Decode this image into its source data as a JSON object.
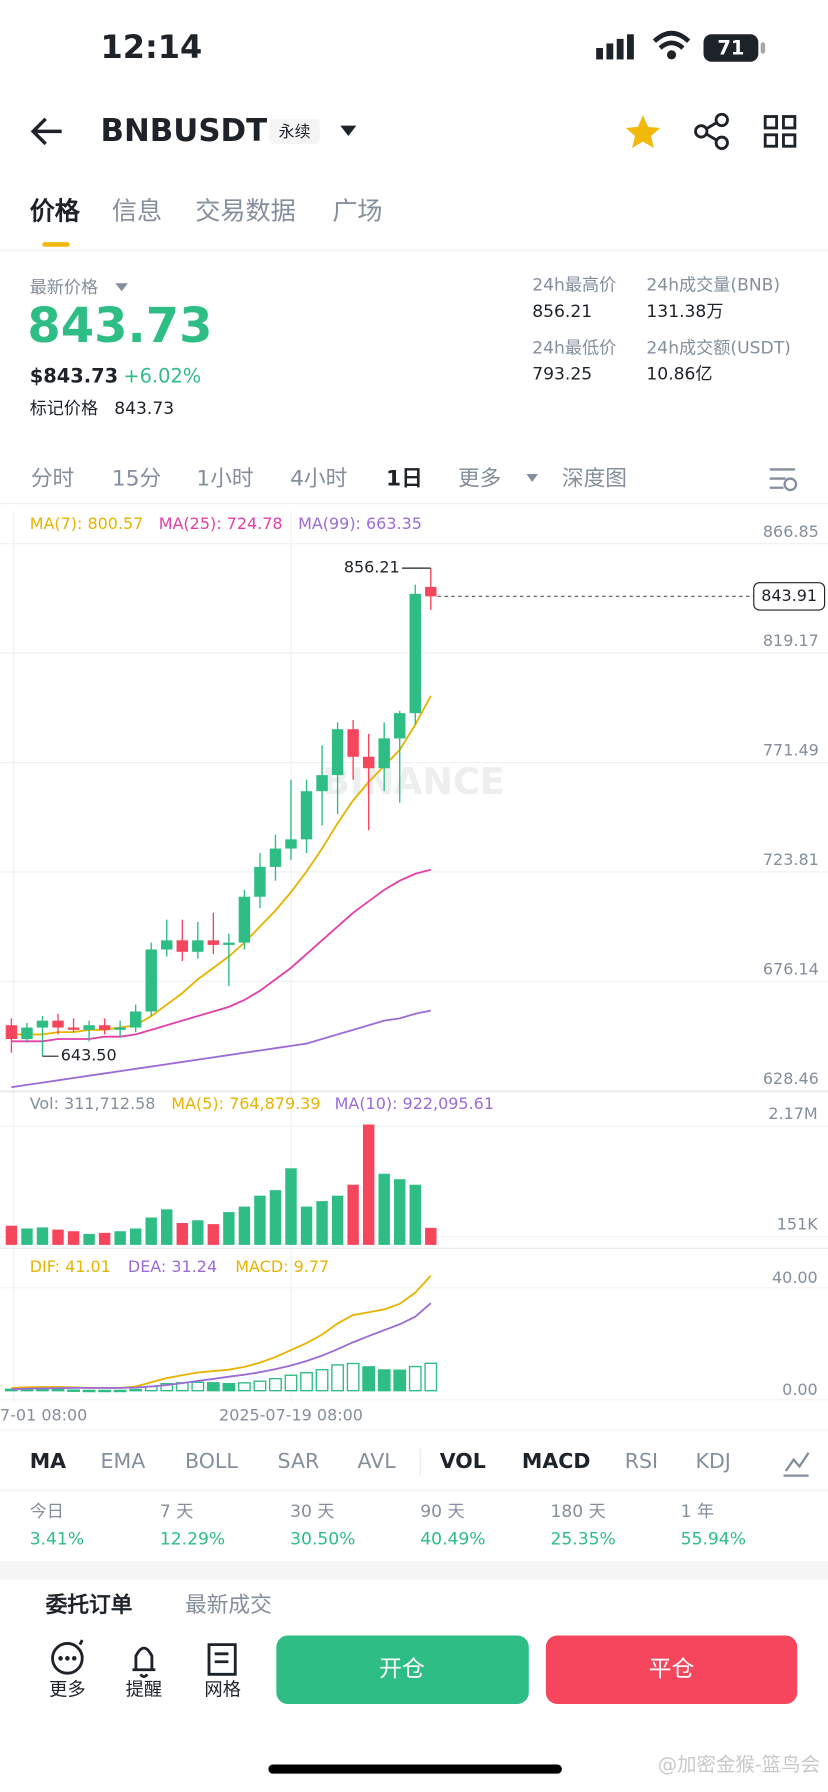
{
  "status_bar": {
    "time": "12:14",
    "battery": "71"
  },
  "header": {
    "symbol": "BNBUSDT",
    "tag": "永续"
  },
  "tabs": [
    "价格",
    "信息",
    "交易数据",
    "广场"
  ],
  "price": {
    "label": "最新价格",
    "last": "843.73",
    "usd": "$843.73",
    "change": "+6.02%",
    "mark_label": "标记价格",
    "mark": "843.73"
  },
  "stats": [
    {
      "label": "24h最高价",
      "value": "856.21"
    },
    {
      "label": "24h成交量(BNB)",
      "value": "131.38万"
    },
    {
      "label": "24h最低价",
      "value": "793.25"
    },
    {
      "label": "24h成交额(USDT)",
      "value": "10.86亿"
    }
  ],
  "intervals": [
    "分时",
    "15分",
    "1小时",
    "4小时",
    "1日",
    "更多",
    "深度图"
  ],
  "kline": {
    "up_color": "#2ebd85",
    "down_color": "#f6465d",
    "ylim": [
      628.46,
      880.8
    ],
    "yticks": [
      866.85,
      819.17,
      771.49,
      723.81,
      676.14,
      628.46
    ],
    "categories": [
      "7-01 08:00",
      null,
      null,
      null,
      null,
      null,
      null,
      null,
      null,
      null,
      null,
      null,
      null,
      null,
      null,
      null,
      null,
      null,
      "2025-07-19 08:00",
      null,
      null,
      null,
      null,
      null,
      null,
      null,
      null,
      null
    ],
    "candles": [
      {
        "open": 657,
        "high": 660,
        "low": 645,
        "close": 651
      },
      {
        "open": 651,
        "high": 658,
        "low": 650,
        "close": 656
      },
      {
        "open": 656,
        "high": 661,
        "low": 643.5,
        "close": 659
      },
      {
        "open": 659,
        "high": 662,
        "low": 653,
        "close": 656
      },
      {
        "open": 656,
        "high": 660,
        "low": 654,
        "close": 655
      },
      {
        "open": 655,
        "high": 659,
        "low": 650,
        "close": 657
      },
      {
        "open": 657,
        "high": 660,
        "low": 653,
        "close": 655
      },
      {
        "open": 655,
        "high": 659,
        "low": 652,
        "close": 656
      },
      {
        "open": 656,
        "high": 666,
        "low": 654,
        "close": 663
      },
      {
        "open": 663,
        "high": 693,
        "low": 661,
        "close": 690
      },
      {
        "open": 690,
        "high": 703,
        "low": 687,
        "close": 694
      },
      {
        "open": 694,
        "high": 703,
        "low": 685,
        "close": 689
      },
      {
        "open": 689,
        "high": 702,
        "low": 686,
        "close": 694
      },
      {
        "open": 694,
        "high": 706,
        "low": 688,
        "close": 692
      },
      {
        "open": 692,
        "high": 697,
        "low": 674,
        "close": 693
      },
      {
        "open": 693,
        "high": 716,
        "low": 690,
        "close": 713
      },
      {
        "open": 713,
        "high": 732,
        "low": 708,
        "close": 726
      },
      {
        "open": 726,
        "high": 740,
        "low": 720,
        "close": 734
      },
      {
        "open": 734,
        "high": 764,
        "low": 729,
        "close": 738
      },
      {
        "open": 738,
        "high": 764,
        "low": 732,
        "close": 759
      },
      {
        "open": 759,
        "high": 779,
        "low": 744,
        "close": 766
      },
      {
        "open": 766,
        "high": 789,
        "low": 749,
        "close": 786
      },
      {
        "open": 786,
        "high": 790,
        "low": 764,
        "close": 774
      },
      {
        "open": 774,
        "high": 784,
        "low": 742,
        "close": 769
      },
      {
        "open": 769,
        "high": 789,
        "low": 759,
        "close": 782
      },
      {
        "open": 782,
        "high": 794,
        "low": 754,
        "close": 793
      },
      {
        "open": 793,
        "high": 849,
        "low": 788,
        "close": 845
      },
      {
        "open": 848,
        "high": 856.21,
        "low": 838,
        "close": 843.91
      }
    ],
    "ma": [
      {
        "label": "MA(7): 800.57",
        "color": "#e6b400",
        "values": [
          653,
          653,
          653,
          654,
          654,
          655,
          655,
          656,
          657,
          661,
          666,
          671,
          677,
          682,
          687,
          693,
          700,
          707,
          715,
          724,
          734,
          745,
          755,
          763,
          770,
          777,
          788,
          800.57
        ]
      },
      {
        "label": "MA(25): 724.78",
        "color": "#e040a8",
        "values": [
          650,
          650,
          650,
          651,
          651,
          651,
          652,
          652,
          653,
          655,
          657,
          659,
          661,
          663,
          665,
          668,
          672,
          677,
          682,
          688,
          694,
          700,
          706,
          711,
          716,
          720,
          723,
          724.78
        ]
      },
      {
        "label": "MA(99): 663.35",
        "color": "#9b6bd6",
        "values": [
          630,
          631,
          632,
          633,
          634,
          635,
          636,
          637,
          638,
          639,
          640,
          641,
          642,
          643,
          644,
          645,
          646,
          647,
          648,
          649,
          651,
          653,
          655,
          657,
          659,
          660,
          662,
          663.35
        ]
      }
    ],
    "high_label": "856.21",
    "low_label": "643.50",
    "last_price": "843.91",
    "watermark": "BINANCE"
  },
  "volume": {
    "legend": [
      {
        "label": "Vol: 311,712.58",
        "color": "#848e9c"
      },
      {
        "label": "MA(5): 764,879.39",
        "color": "#e6b400"
      },
      {
        "label": "MA(10): 922,095.61",
        "color": "#9b6bd6"
      }
    ],
    "ylim": [
      0,
      2400000
    ],
    "yticks": [
      {
        "value": 2170000,
        "label": "2.17M"
      },
      {
        "value": 151000,
        "label": "151K"
      }
    ],
    "values": [
      350000,
      300000,
      320000,
      280000,
      250000,
      200000,
      220000,
      250000,
      300000,
      500000,
      650000,
      400000,
      450000,
      380000,
      600000,
      700000,
      900000,
      1000000,
      1400000,
      700000,
      800000,
      900000,
      1100000,
      2200000,
      1300000,
      1200000,
      1100000,
      311712.58
    ]
  },
  "macd": {
    "legend": [
      {
        "label": "DIF: 41.01",
        "color": "#e6b400"
      },
      {
        "label": "DEA: 31.24",
        "color": "#9b6bd6"
      },
      {
        "label": "MACD: 9.77",
        "color": "#e6b400"
      }
    ],
    "ylim": [
      -3,
      50
    ],
    "yticks": [
      {
        "value": 40,
        "label": "40.00"
      },
      {
        "value": 0,
        "label": "0.00"
      }
    ],
    "dif": [
      1,
      1.2,
      1.3,
      1.3,
      1.2,
      1,
      1,
      1,
      1.5,
      3,
      4.5,
      5.5,
      6.5,
      7,
      7.5,
      8.5,
      10,
      12,
      14.5,
      17,
      20,
      24,
      27,
      28,
      29,
      31,
      35,
      41.01
    ],
    "dea": [
      0.5,
      0.7,
      0.8,
      0.9,
      1,
      1,
      1,
      1,
      1.1,
      1.5,
      2,
      2.7,
      3.5,
      4.2,
      5,
      5.7,
      6.6,
      7.7,
      9,
      10.6,
      12.5,
      14.8,
      17.3,
      19.5,
      21.6,
      23.7,
      26.4,
      31.24
    ],
    "hist": [
      0.5,
      0.5,
      0.5,
      0.4,
      0.2,
      0.1,
      0.1,
      0.1,
      0.4,
      1.5,
      2.5,
      2.8,
      3,
      2.8,
      2.5,
      2.8,
      3.4,
      4.3,
      5.5,
      6.4,
      7.5,
      9.2,
      9.7,
      8.5,
      7.4,
      7.3,
      8.6,
      9.77
    ]
  },
  "indicators": {
    "main": [
      "MA",
      "EMA",
      "BOLL",
      "SAR",
      "AVL"
    ],
    "sub": [
      "VOL",
      "MACD",
      "RSI",
      "KDJ"
    ]
  },
  "performance": [
    {
      "label": "今日",
      "value": "3.41%"
    },
    {
      "label": "7 天",
      "value": "12.29%"
    },
    {
      "label": "30 天",
      "value": "30.50%"
    },
    {
      "label": "90 天",
      "value": "40.49%"
    },
    {
      "label": "180 天",
      "value": "25.35%"
    },
    {
      "label": "1 年",
      "value": "55.94%"
    }
  ],
  "order_tabs": [
    "委托订单",
    "最新成交"
  ],
  "bottom": {
    "tools": [
      "更多",
      "提醒",
      "网格"
    ],
    "buy": "开仓",
    "sell": "平仓"
  },
  "watermark": "@加密金猴-篮鸟会"
}
